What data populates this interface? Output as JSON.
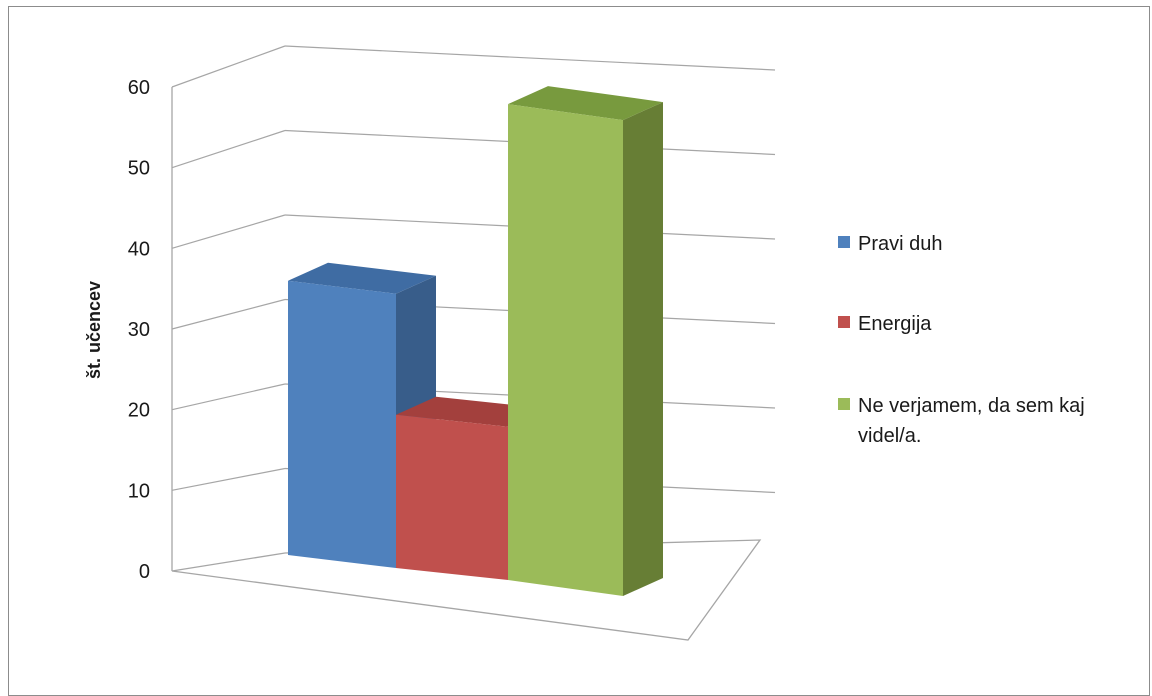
{
  "chart_data": {
    "type": "bar",
    "style": "3d-column",
    "title": "",
    "xlabel": "",
    "ylabel": "št. učencev",
    "ylim": [
      0,
      60
    ],
    "yticks": [
      "0",
      "10",
      "20",
      "30",
      "40",
      "50",
      "60"
    ],
    "grid": true,
    "legend_position": "right",
    "series": [
      {
        "name": "Pravi duh",
        "value": 34,
        "color": "#4F81BD",
        "side_color": "#385D8A",
        "top_color": "#3F6CA3"
      },
      {
        "name": "Energija",
        "value": 19,
        "color": "#C0504D",
        "side_color": "#8C3836",
        "top_color": "#A3403D"
      },
      {
        "name": "Ne verjamem, da sem kaj videl/a.",
        "legend_lines": [
          "Ne verjamem, da sem kaj",
          "videl/a."
        ],
        "value": 59,
        "color": "#9BBB59",
        "side_color": "#677E35",
        "top_color": "#789A3E"
      }
    ]
  }
}
